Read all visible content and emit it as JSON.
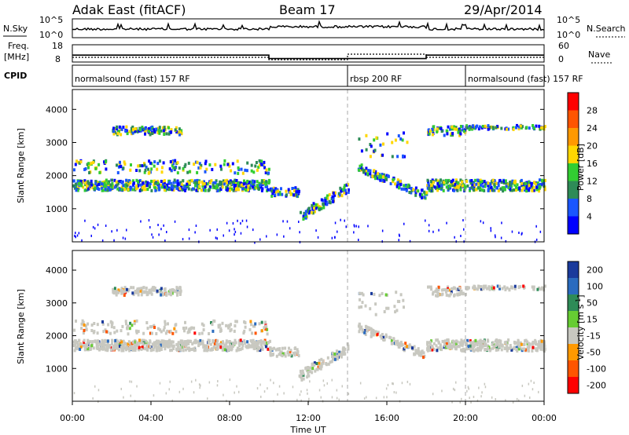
{
  "header": {
    "station": "Adak East (fitACF)",
    "beam": "Beam 17",
    "date": "29/Apr/2014"
  },
  "top_panels": {
    "nsky_label": "N.Sky",
    "nsearch_label": "N.Search",
    "noise_ticks": [
      "10^5",
      "10^0"
    ],
    "freq_label": "Freq.",
    "freq_unit": "[MHz]",
    "freq_ticks": [
      "18",
      "8"
    ],
    "nave_label": "Nave",
    "nave_ticks": [
      "60",
      "0"
    ],
    "cpid_label": "CPID",
    "cpid_segments": [
      {
        "text": "normalsound (fast) 157 RF",
        "start_hour": 0,
        "end_hour": 14
      },
      {
        "text": "rbsp 200 RF",
        "start_hour": 14,
        "end_hour": 20
      },
      {
        "text": "normalsound (fast) 157 RF",
        "start_hour": 20,
        "end_hour": 24
      }
    ],
    "freq_steps": [
      {
        "start_hour": 0,
        "end_hour": 10,
        "value": 12
      },
      {
        "start_hour": 10,
        "end_hour": 18,
        "value": 10
      },
      {
        "start_hour": 18,
        "end_hour": 24,
        "value": 12
      }
    ]
  },
  "chart_data": [
    {
      "type": "heatmap",
      "title": "Power",
      "ylabel": "Slant Range [km]",
      "ylim": [
        0,
        4600
      ],
      "yticks": [
        "1000",
        "2000",
        "3000",
        "4000"
      ],
      "colorbar_label": "Power [dB]",
      "colorbar_ticks": [
        "4",
        "8",
        "12",
        "16",
        "20",
        "24",
        "28"
      ],
      "colors": [
        "#0000ff",
        "#1a56ff",
        "#2e8b57",
        "#32cd32",
        "#ffd700",
        "#ff9900",
        "#ff5500",
        "#ff0000"
      ]
    },
    {
      "type": "heatmap",
      "title": "Velocity",
      "ylabel": "Slant Range [km]",
      "ylim": [
        0,
        4600
      ],
      "yticks": [
        "1000",
        "2000",
        "3000",
        "4000"
      ],
      "colorbar_label": "Velocity [m s",
      "colorbar_label_sup": "-1",
      "colorbar_label_end": "]",
      "colorbar_ticks": [
        "200",
        "100",
        "50",
        "15",
        "-15",
        "-50",
        "-100",
        "-200"
      ],
      "colors": [
        "#1a3a9c",
        "#2a6bbf",
        "#2e8b57",
        "#66cc33",
        "#c8c8c0",
        "#ff9900",
        "#ff5500",
        "#ff0000"
      ]
    }
  ],
  "xaxis": {
    "label": "Time UT",
    "ticks": [
      "00:00",
      "04:00",
      "08:00",
      "12:00",
      "16:00",
      "20:00",
      "00:00"
    ],
    "range_hours": [
      0,
      24
    ]
  }
}
